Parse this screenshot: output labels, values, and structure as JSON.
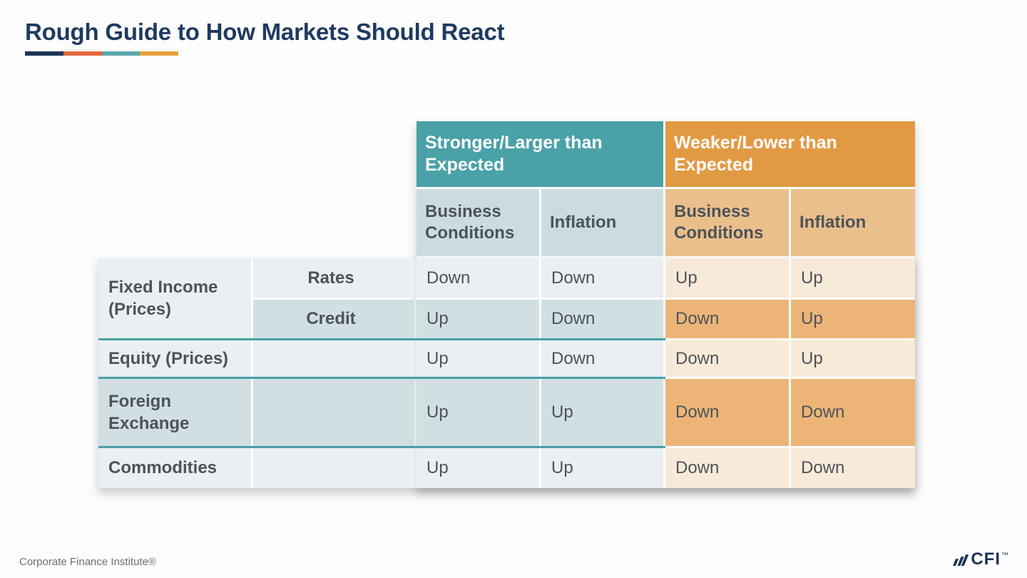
{
  "slide": {
    "title": "Rough Guide to How Markets Should React",
    "footer_left": "Corporate Finance Institute®",
    "logo": {
      "icon": "three-slanted-bars",
      "text": "CFI",
      "tm": "™"
    }
  },
  "table": {
    "group_headers": [
      {
        "label": "Stronger/Larger than Expected"
      },
      {
        "label": "Weaker/Lower than Expected"
      }
    ],
    "sub_headers": [
      "Business Conditions",
      "Inflation",
      "Business Conditions",
      "Inflation"
    ],
    "rows": [
      {
        "category": "Fixed Income (Prices)",
        "sub_label": "Rates",
        "values": [
          "Down",
          "Down",
          "Up",
          "Up"
        ]
      },
      {
        "sub_label": "Credit",
        "values": [
          "Up",
          "Down",
          "Down",
          "Up"
        ]
      },
      {
        "category": "Equity (Prices)",
        "sub_label": "",
        "values": [
          "Up",
          "Down",
          "Down",
          "Up"
        ]
      },
      {
        "category": "Foreign Exchange",
        "sub_label": "",
        "values": [
          "Up",
          "Up",
          "Down",
          "Down"
        ]
      },
      {
        "category": "Commodities",
        "sub_label": "",
        "values": [
          "Up",
          "Up",
          "Down",
          "Down"
        ]
      }
    ]
  },
  "colors": {
    "title": "#1E3A5F",
    "underline_segments": [
      "#1D3557",
      "#E2693F",
      "#5CA7AD",
      "#E2A33D"
    ],
    "header_teal": "#4BA1A8",
    "header_orange": "#E19A43",
    "subheader_blue": "#CBDCE0",
    "subheader_orange": "#EBBF8C",
    "row_blue_light": "#E9EFF2",
    "row_blue_dark": "#D1DFE2",
    "row_orange_light": "#F8EAD8",
    "row_orange_dark": "#ECB577",
    "separator_teal": "#47A0A6",
    "cell_text": "#4D5359",
    "header_text": "#FFFFFF",
    "footer_text": "#6B6E71",
    "logo_navy": "#1D3357"
  }
}
